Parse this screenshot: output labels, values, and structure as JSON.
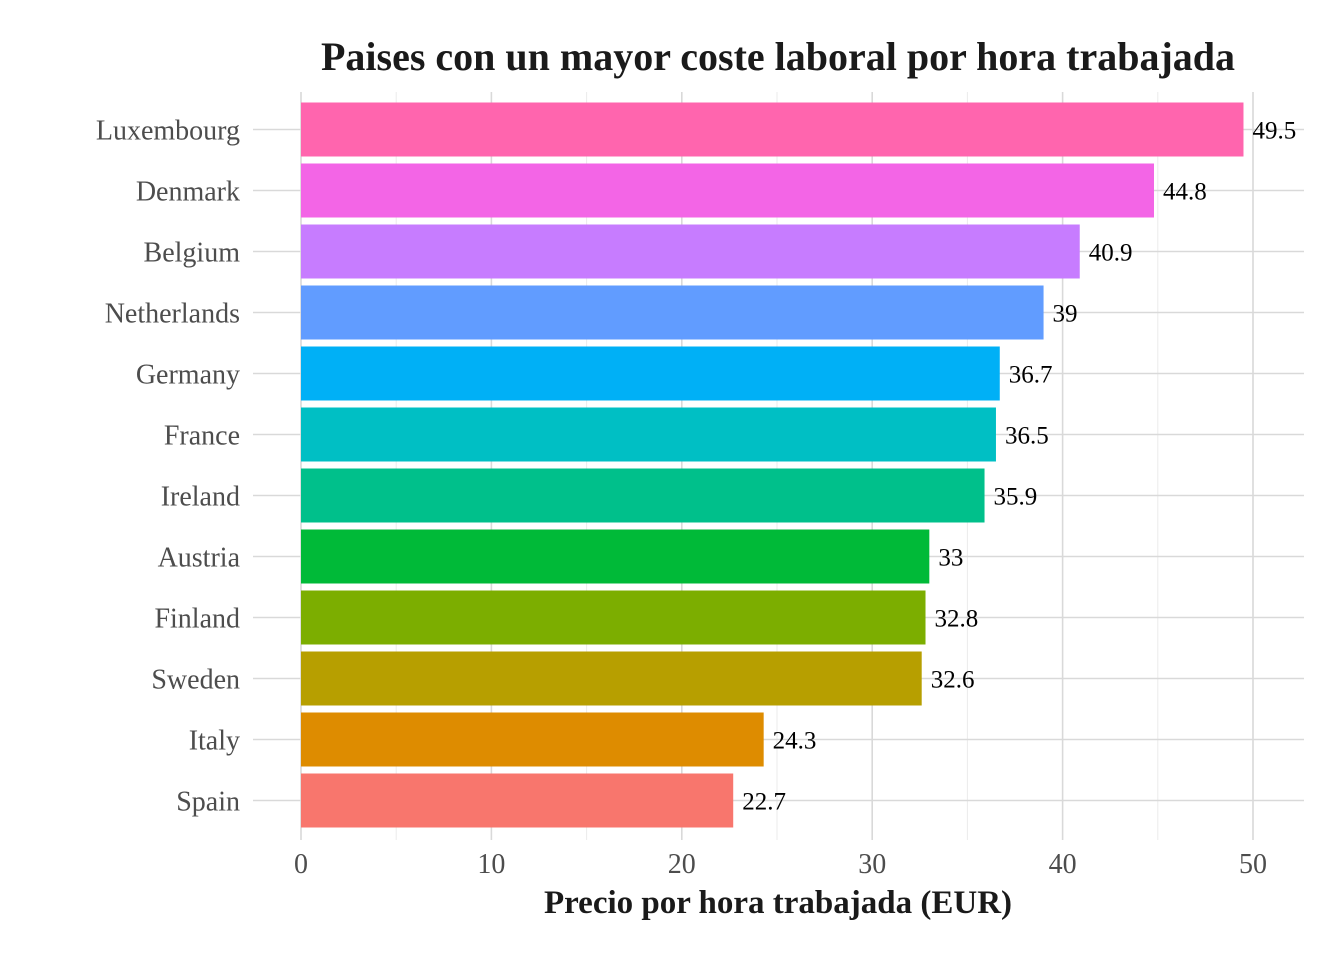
{
  "chart_data": {
    "type": "bar",
    "orientation": "horizontal",
    "title": "Paises con un mayor coste laboral por hora trabajada",
    "xlabel": "Precio por hora trabajada (EUR)",
    "ylabel": "",
    "xlim": [
      0,
      52.5
    ],
    "xticks": [
      0,
      10,
      20,
      30,
      40,
      50
    ],
    "grid": true,
    "legend": "none",
    "categories": [
      "Luxembourg",
      "Denmark",
      "Belgium",
      "Netherlands",
      "Germany",
      "France",
      "Ireland",
      "Austria",
      "Finland",
      "Sweden",
      "Italy",
      "Spain"
    ],
    "values": [
      49.5,
      44.8,
      40.9,
      39,
      36.7,
      36.5,
      35.9,
      33,
      32.8,
      32.6,
      24.3,
      22.7
    ],
    "value_labels": [
      "49.5",
      "44.8",
      "40.9",
      "39",
      "36.7",
      "36.5",
      "35.9",
      "33",
      "32.8",
      "32.6",
      "24.3",
      "22.7"
    ],
    "colors": [
      "#FF65AE",
      "#F365E6",
      "#C77CFF",
      "#619CFF",
      "#00B0F6",
      "#00BFC4",
      "#00C08B",
      "#00BA38",
      "#7CAE00",
      "#B79F00",
      "#DE8C00",
      "#F8766D"
    ]
  }
}
